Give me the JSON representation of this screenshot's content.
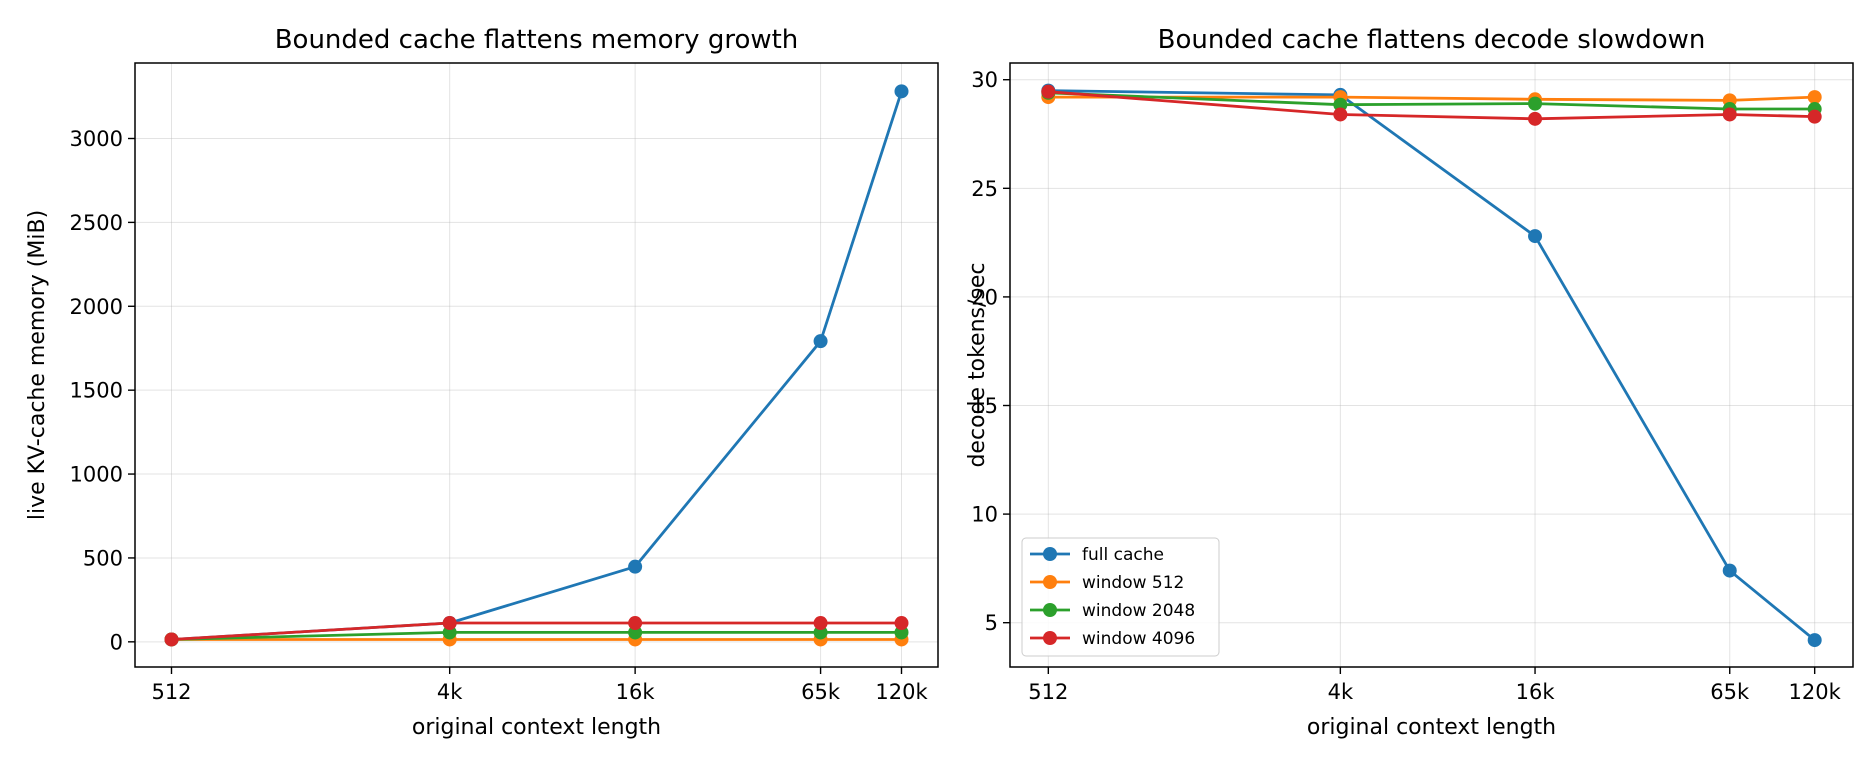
{
  "chart_data": [
    {
      "type": "line",
      "title": "Bounded cache flattens memory growth",
      "xlabel": "original context length",
      "ylabel": "live KV-cache memory (MiB)",
      "x_scale": "log",
      "x": [
        512,
        4096,
        16384,
        65536,
        120000
      ],
      "x_tick_labels": [
        "512",
        "4k",
        "16k",
        "65k",
        "120k"
      ],
      "ylim": [
        -150,
        3450
      ],
      "y_ticks": [
        0,
        500,
        1000,
        1500,
        2000,
        2500,
        3000
      ],
      "grid": true,
      "series": [
        {
          "name": "full cache",
          "color": "#1f77b4",
          "values": [
            14,
            112,
            448,
            1792,
            3281
          ]
        },
        {
          "name": "window 512",
          "color": "#ff7f0e",
          "values": [
            14,
            14,
            14,
            14,
            14
          ]
        },
        {
          "name": "window 2048",
          "color": "#2ca02c",
          "values": [
            14,
            56,
            56,
            56,
            56
          ]
        },
        {
          "name": "window 4096",
          "color": "#d62728",
          "values": [
            14,
            112,
            112,
            112,
            112
          ]
        }
      ]
    },
    {
      "type": "line",
      "title": "Bounded cache flattens decode slowdown",
      "xlabel": "original context length",
      "ylabel": "decode tokens/sec",
      "x_scale": "log",
      "x": [
        512,
        4096,
        16384,
        65536,
        120000
      ],
      "x_tick_labels": [
        "512",
        "4k",
        "16k",
        "65k",
        "120k"
      ],
      "ylim": [
        2.96,
        30.77
      ],
      "y_ticks": [
        5,
        10,
        15,
        20,
        25,
        30
      ],
      "grid": true,
      "legend": "lower-left",
      "series": [
        {
          "name": "full cache",
          "color": "#1f77b4",
          "values": [
            29.5,
            29.3,
            22.8,
            7.4,
            4.2
          ]
        },
        {
          "name": "window 512",
          "color": "#ff7f0e",
          "values": [
            29.2,
            29.2,
            29.1,
            29.05,
            29.2
          ]
        },
        {
          "name": "window 2048",
          "color": "#2ca02c",
          "values": [
            29.4,
            28.85,
            28.9,
            28.65,
            28.65
          ]
        },
        {
          "name": "window 4096",
          "color": "#d62728",
          "values": [
            29.45,
            28.4,
            28.2,
            28.4,
            28.3
          ]
        }
      ]
    }
  ]
}
